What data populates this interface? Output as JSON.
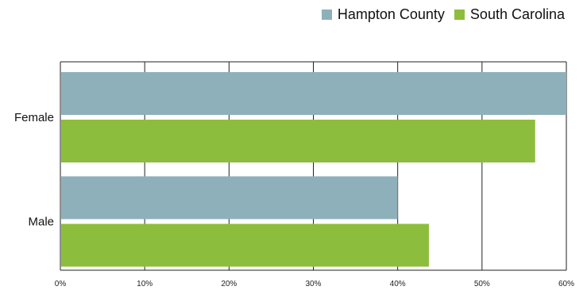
{
  "chart_data": {
    "type": "bar",
    "orientation": "horizontal",
    "categories": [
      "Female",
      "Male"
    ],
    "series": [
      {
        "name": "Hampton County",
        "values": [
          60,
          40
        ],
        "color": "#8eb0ba"
      },
      {
        "name": "South Carolina",
        "values": [
          56.3,
          43.7
        ],
        "color": "#8dbd3c"
      }
    ],
    "xlim": [
      0,
      60
    ],
    "x_ticks": [
      "0%",
      "10%",
      "20%",
      "30%",
      "40%",
      "50%",
      "60%"
    ],
    "legend_position": "top-right",
    "grid": true
  }
}
